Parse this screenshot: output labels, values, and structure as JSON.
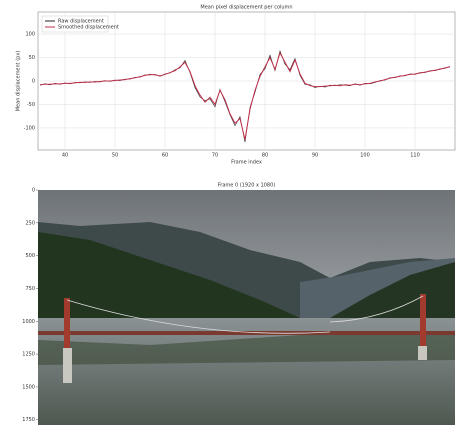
{
  "chart_data": [
    {
      "type": "line",
      "title": "Mean pixel displacement per column",
      "xlabel": "Frame index",
      "ylabel": "Mean displacement (px)",
      "x": [
        35,
        36,
        37,
        38,
        39,
        40,
        41,
        42,
        43,
        44,
        45,
        46,
        47,
        48,
        49,
        50,
        51,
        52,
        53,
        54,
        55,
        56,
        57,
        58,
        59,
        60,
        61,
        62,
        63,
        64,
        65,
        66,
        67,
        68,
        69,
        70,
        71,
        72,
        73,
        74,
        75,
        76,
        77,
        78,
        79,
        80,
        81,
        82,
        83,
        84,
        85,
        86,
        87,
        88,
        89,
        90,
        91,
        92,
        93,
        94,
        95,
        96,
        97,
        98,
        99,
        100,
        101,
        102,
        103,
        104,
        105,
        106,
        107,
        108,
        109,
        110,
        111,
        112,
        113,
        114,
        115,
        116,
        117
      ],
      "series": [
        {
          "name": "Raw displacement",
          "color": "#222222",
          "values": [
            -9,
            -6,
            -8,
            -5,
            -7,
            -4,
            -6,
            -3,
            -4,
            -2,
            -3,
            -1,
            -2,
            1,
            -1,
            2,
            1,
            4,
            4,
            8,
            8,
            13,
            13,
            14,
            10,
            15,
            17,
            24,
            28,
            44,
            18,
            -14,
            -34,
            -42,
            -38,
            -55,
            -18,
            -44,
            -72,
            -95,
            -76,
            -130,
            -56,
            -24,
            14,
            26,
            55,
            22,
            64,
            36,
            24,
            48,
            12,
            -7,
            -8,
            -14,
            -11,
            -13,
            -9,
            -10,
            -8,
            -9,
            -10,
            -6,
            -9,
            -5,
            -6,
            -3,
            1,
            2,
            7,
            7,
            11,
            11,
            15,
            14,
            18,
            18,
            22,
            22,
            26,
            27,
            31
          ]
        },
        {
          "name": "Smoothed displacement",
          "color": "#c0304a",
          "values": [
            -8,
            -7,
            -7,
            -6,
            -6,
            -5,
            -5,
            -4,
            -3,
            -3,
            -2,
            -2,
            -1,
            0,
            0,
            1,
            2,
            3,
            5,
            7,
            9,
            12,
            14,
            13,
            11,
            14,
            18,
            22,
            30,
            40,
            20,
            -10,
            -30,
            -45,
            -35,
            -50,
            -20,
            -40,
            -70,
            -90,
            -80,
            -125,
            -60,
            -20,
            10,
            30,
            50,
            25,
            60,
            40,
            20,
            45,
            15,
            -5,
            -10,
            -12,
            -12,
            -11,
            -10,
            -9,
            -10,
            -8,
            -9,
            -7,
            -8,
            -6,
            -5,
            -2,
            0,
            3,
            6,
            8,
            10,
            12,
            14,
            15,
            17,
            19,
            21,
            23,
            25,
            28,
            30
          ]
        }
      ],
      "xlim": [
        34.6,
        118
      ],
      "xticks": [
        40,
        50,
        60,
        70,
        80,
        90,
        100,
        110
      ],
      "ylim": [
        -147,
        147
      ],
      "yticks": [
        -100,
        -50,
        0,
        50,
        100
      ],
      "grid": true,
      "legend": "upper-left"
    },
    {
      "type": "image",
      "title": "Frame 0 (1920 x 1080)",
      "ylim": [
        0,
        1790
      ],
      "yticks": [
        0,
        250,
        500,
        750,
        1000,
        1250,
        1500,
        1750
      ]
    }
  ]
}
